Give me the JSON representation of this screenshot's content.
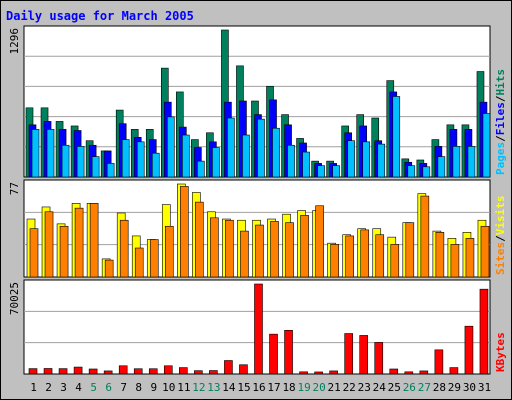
{
  "title": "Daily usage for March 2005",
  "colors": {
    "background": "#c0c0c0",
    "plot_bg": "#ffffff",
    "title": "#0000ff",
    "hits": "#00805c",
    "files": "#0000ff",
    "pages": "#00c0ff",
    "visits": "#ffff00",
    "sites": "#ff8000",
    "kbytes": "#ff0000",
    "weekend": "#00805c",
    "weekday": "#000000"
  },
  "chart_data": [
    {
      "type": "bar",
      "name": "hits-files-pages",
      "ymax_label": "1296",
      "ymax": 1296,
      "legend": [
        "Pages",
        "/",
        "Files",
        "/",
        "Hits"
      ],
      "categories": [
        "1",
        "2",
        "3",
        "4",
        "5",
        "6",
        "7",
        "8",
        "9",
        "10",
        "11",
        "12",
        "13",
        "14",
        "15",
        "16",
        "17",
        "18",
        "19",
        "20",
        "21",
        "22",
        "23",
        "24",
        "25",
        "26",
        "27",
        "28",
        "29",
        "30",
        "31"
      ],
      "series": [
        {
          "name": "Hits",
          "values": [
            610,
            610,
            490,
            450,
            320,
            230,
            590,
            420,
            420,
            960,
            750,
            330,
            390,
            1296,
            980,
            670,
            800,
            550,
            340,
            140,
            140,
            450,
            550,
            520,
            850,
            160,
            150,
            330,
            460,
            460,
            930
          ]
        },
        {
          "name": "Files",
          "values": [
            460,
            490,
            420,
            410,
            280,
            230,
            470,
            350,
            330,
            660,
            440,
            260,
            310,
            660,
            670,
            550,
            680,
            460,
            300,
            120,
            120,
            390,
            450,
            320,
            750,
            130,
            120,
            270,
            420,
            420,
            660
          ]
        },
        {
          "name": "Pages",
          "values": [
            420,
            420,
            280,
            270,
            180,
            120,
            330,
            310,
            210,
            530,
            370,
            140,
            260,
            520,
            370,
            510,
            430,
            280,
            220,
            100,
            100,
            320,
            310,
            290,
            710,
            100,
            90,
            180,
            270,
            270,
            560
          ]
        }
      ]
    },
    {
      "type": "bar",
      "name": "visits-sites",
      "ymax_label": "77",
      "ymax": 77,
      "legend": [
        "Sites",
        "/",
        "Visits"
      ],
      "categories": [
        "1",
        "2",
        "3",
        "4",
        "5",
        "6",
        "7",
        "8",
        "9",
        "10",
        "11",
        "12",
        "13",
        "14",
        "15",
        "16",
        "17",
        "18",
        "19",
        "20",
        "21",
        "22",
        "23",
        "24",
        "25",
        "26",
        "27",
        "28",
        "29",
        "30",
        "31"
      ],
      "series": [
        {
          "name": "Visits",
          "values": [
            48,
            58,
            44,
            61,
            61,
            15,
            53,
            34,
            31,
            60,
            77,
            70,
            54,
            48,
            47,
            47,
            48,
            52,
            55,
            55,
            28,
            35,
            40,
            40,
            33,
            45,
            69,
            38,
            32,
            37,
            47
          ]
        },
        {
          "name": "Sites",
          "values": [
            40,
            54,
            42,
            57,
            61,
            14,
            47,
            24,
            31,
            42,
            75,
            62,
            49,
            47,
            38,
            43,
            46,
            45,
            51,
            59,
            27,
            34,
            39,
            35,
            27,
            45,
            67,
            37,
            27,
            32,
            42
          ]
        }
      ]
    },
    {
      "type": "bar",
      "name": "kbytes",
      "ymax_label": "70025",
      "ymax": 70025,
      "legend": [
        "KBytes"
      ],
      "categories": [
        "1",
        "2",
        "3",
        "4",
        "5",
        "6",
        "7",
        "8",
        "9",
        "10",
        "11",
        "12",
        "13",
        "14",
        "15",
        "16",
        "17",
        "18",
        "19",
        "20",
        "21",
        "22",
        "23",
        "24",
        "25",
        "26",
        "27",
        "28",
        "29",
        "30",
        "31"
      ],
      "series": [
        {
          "name": "KBytes",
          "values": [
            4200,
            4300,
            4200,
            5400,
            3900,
            2400,
            6400,
            4100,
            4100,
            6400,
            5000,
            2600,
            2700,
            10500,
            7200,
            70025,
            31000,
            34000,
            1700,
            1600,
            2400,
            31500,
            30000,
            24600,
            3900,
            1700,
            2400,
            18800,
            5000,
            37200,
            66000
          ]
        }
      ]
    }
  ],
  "weekend_days": [
    "5",
    "6",
    "12",
    "13",
    "19",
    "20",
    "26",
    "27"
  ]
}
